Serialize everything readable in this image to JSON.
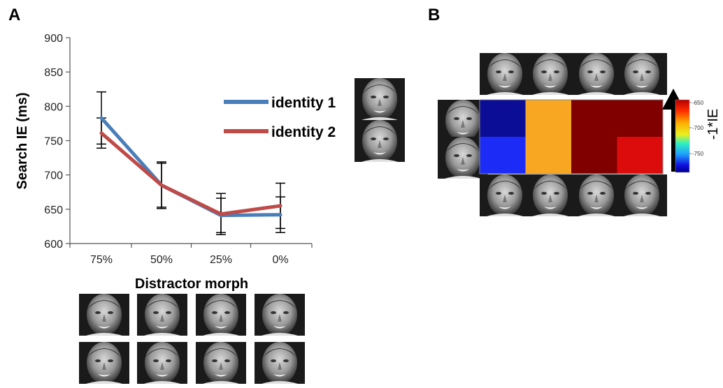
{
  "panels": {
    "a": "A",
    "b": "B"
  },
  "chart_data": [
    {
      "type": "line",
      "xlabel": "Distractor morph",
      "ylabel": "Search IE (ms)",
      "categories": [
        "75%",
        "50%",
        "25%",
        "0%"
      ],
      "ylim": [
        600,
        900
      ],
      "yticks": [
        600,
        650,
        700,
        750,
        800,
        850,
        900
      ],
      "grid": false,
      "legend": "right",
      "series": [
        {
          "name": "identity 1",
          "color": "#4A7EBB",
          "values": [
            783,
            685,
            641,
            642
          ],
          "error": [
            38,
            34,
            25,
            26
          ]
        },
        {
          "name": "identity 2",
          "color": "#BE4B48",
          "values": [
            761,
            685,
            643,
            655
          ],
          "error": [
            22,
            32,
            30,
            33
          ]
        }
      ]
    },
    {
      "type": "heatmap",
      "rows": 2,
      "cols": 4,
      "colorbar_label": "-1*IE",
      "colorbar_ticks": [
        "-650",
        "-700",
        "-750"
      ],
      "cells": [
        [
          "#0B0D96",
          "#F8A722",
          "#800000",
          "#800000"
        ],
        [
          "#1C2BF5",
          "#F8A722",
          "#800000",
          "#DC0C0C"
        ]
      ]
    }
  ]
}
